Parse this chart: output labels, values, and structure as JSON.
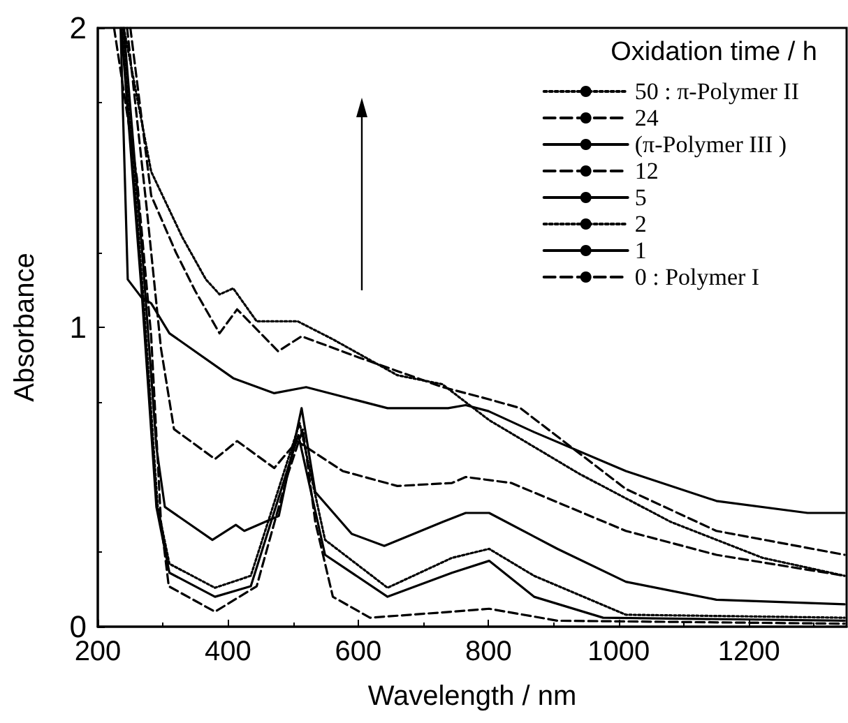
{
  "chart_data": {
    "type": "line",
    "xlabel": "Wavelength / nm",
    "ylabel": "Absorbance",
    "legend_title": "Oxidation time / h",
    "xlim": [
      200,
      1350
    ],
    "ylim": [
      0,
      2
    ],
    "xticks": [
      200,
      400,
      600,
      800,
      1000,
      1200
    ],
    "yticks": [
      0,
      1,
      2
    ],
    "legend": "top right",
    "grid": false,
    "marker": "none",
    "series": [
      {
        "name": "50 : π-Polymer II",
        "color": "#000000",
        "line_style": "dotted",
        "x": [
          240,
          282,
          330,
          366,
          387,
          408,
          444,
          507,
          561,
          660,
          729,
          801,
          940,
          1080,
          1221,
          1347
        ],
        "values": [
          2,
          1.52,
          1.3,
          1.16,
          1.11,
          1.13,
          1.02,
          1.02,
          0.96,
          0.84,
          0.81,
          0.69,
          0.51,
          0.35,
          0.23,
          0.17
        ]
      },
      {
        "name": "24",
        "color": "#000000",
        "line_style": "dashed",
        "x": [
          250,
          282,
          320,
          350,
          387,
          414,
          477,
          513,
          600,
          730,
          800,
          849,
          1011,
          1150,
          1347
        ],
        "values": [
          2,
          1.44,
          1.25,
          1.12,
          0.98,
          1.06,
          0.92,
          0.97,
          0.9,
          0.8,
          0.76,
          0.73,
          0.46,
          0.32,
          0.24
        ]
      },
      {
        "name": "(π-Polymer III )",
        "color": "#000000",
        "line_style": "solid",
        "x": [
          235,
          246,
          267,
          282,
          310,
          408,
          471,
          520,
          645,
          738,
          765,
          800,
          870,
          1011,
          1150,
          1290,
          1347
        ],
        "values": [
          2,
          1.16,
          1.1,
          1.08,
          0.98,
          0.83,
          0.78,
          0.8,
          0.73,
          0.73,
          0.74,
          0.72,
          0.65,
          0.52,
          0.42,
          0.38,
          0.38
        ]
      },
      {
        "name": "12",
        "color": "#000000",
        "line_style": "dashed",
        "x": [
          245,
          275,
          297,
          317,
          380,
          414,
          471,
          506,
          576,
          660,
          744,
          765,
          835,
          1011,
          1150,
          1347
        ],
        "values": [
          2,
          1.4,
          0.93,
          0.66,
          0.56,
          0.62,
          0.53,
          0.62,
          0.52,
          0.47,
          0.48,
          0.5,
          0.48,
          0.32,
          0.24,
          0.17
        ]
      },
      {
        "name": "5",
        "color": "#000000",
        "line_style": "solid",
        "x": [
          240,
          270,
          290,
          303,
          376,
          412,
          425,
          478,
          513,
          534,
          590,
          640,
          730,
          765,
          801,
          906,
          1011,
          1150,
          1347
        ],
        "values": [
          2,
          1.2,
          0.6,
          0.4,
          0.29,
          0.34,
          0.32,
          0.37,
          0.73,
          0.45,
          0.31,
          0.27,
          0.35,
          0.38,
          0.38,
          0.26,
          0.15,
          0.09,
          0.075
        ]
      },
      {
        "name": "2",
        "color": "#000000",
        "line_style": "dotted",
        "x": [
          238,
          270,
          292,
          310,
          380,
          435,
          510,
          549,
          645,
          744,
          801,
          870,
          1011,
          1347
        ],
        "values": [
          2,
          1.1,
          0.4,
          0.21,
          0.13,
          0.17,
          0.68,
          0.29,
          0.13,
          0.23,
          0.26,
          0.17,
          0.04,
          0.03
        ]
      },
      {
        "name": "1",
        "color": "#000000",
        "line_style": "solid",
        "x": [
          236,
          268,
          290,
          310,
          380,
          435,
          508,
          549,
          645,
          744,
          801,
          870,
          976,
          1347
        ],
        "values": [
          2,
          1.1,
          0.4,
          0.18,
          0.1,
          0.135,
          0.64,
          0.24,
          0.1,
          0.18,
          0.22,
          0.1,
          0.03,
          0.02
        ]
      },
      {
        "name": "0 : Polymer I",
        "color": "#000000",
        "line_style": "dashed",
        "x": [
          225,
          260,
          282,
          297,
          309,
          380,
          444,
          492,
          515,
          534,
          561,
          618,
          744,
          801,
          906,
          1347
        ],
        "values": [
          2,
          1.5,
          0.97,
          0.35,
          0.135,
          0.05,
          0.135,
          0.51,
          0.66,
          0.35,
          0.1,
          0.03,
          0.05,
          0.06,
          0.02,
          0.01
        ]
      }
    ]
  }
}
